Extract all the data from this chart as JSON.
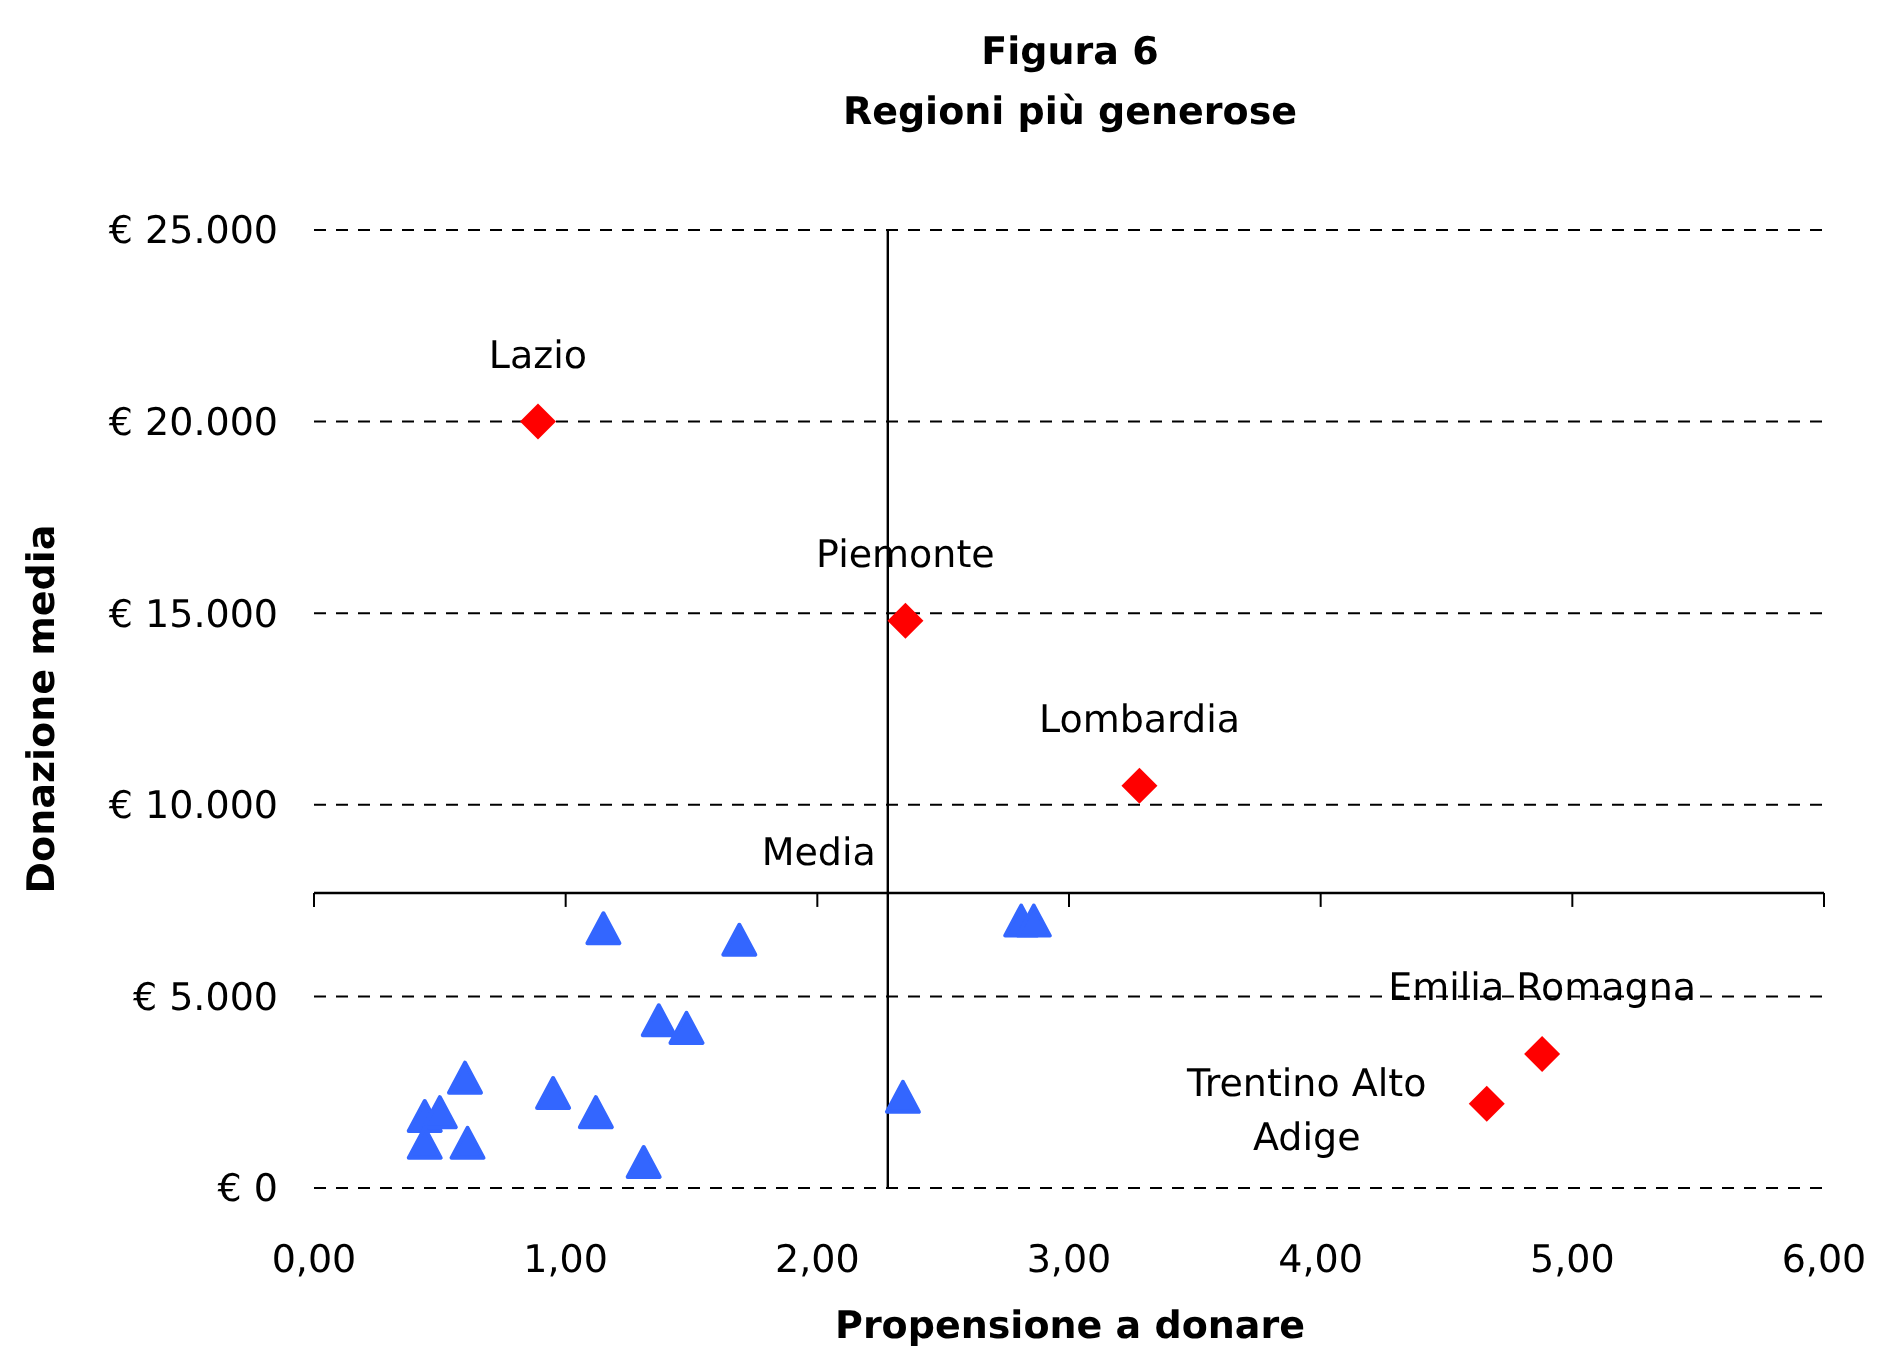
{
  "chart_data": {
    "type": "scatter",
    "title": "Figura 6",
    "subtitle": "Regioni più generose",
    "xlabel": "Propensione a donare",
    "ylabel": "Donazione media",
    "xlim": [
      0,
      6
    ],
    "xticks": [
      {
        "value": 0,
        "label": "0,00"
      },
      {
        "value": 1,
        "label": "1,00"
      },
      {
        "value": 2,
        "label": "2,00"
      },
      {
        "value": 3,
        "label": "3,00"
      },
      {
        "value": 4,
        "label": "4,00"
      },
      {
        "value": 5,
        "label": "5,00"
      },
      {
        "value": 6,
        "label": "6,00"
      }
    ],
    "ylim": [
      0,
      25000
    ],
    "yticks": [
      {
        "value": 0,
        "label": "€ 0"
      },
      {
        "value": 5000,
        "label": "€ 5.000"
      },
      {
        "value": 10000,
        "label": "€ 10.000"
      },
      {
        "value": 15000,
        "label": "€ 15.000"
      },
      {
        "value": 20000,
        "label": "€ 20.000"
      },
      {
        "value": 25000,
        "label": "€ 25.000"
      }
    ],
    "grid": "y",
    "series": [
      {
        "color": "#ff0000",
        "marker": "diamond",
        "x": [
          0.89,
          2.35,
          3.28,
          4.88,
          4.66
        ],
        "values": [
          20000,
          14800,
          10500,
          3500,
          2200
        ]
      },
      {
        "color": "#3366ff",
        "marker": "triangle",
        "x": [
          1.15,
          1.69,
          2.81,
          2.86,
          1.37,
          1.48,
          0.6,
          0.95,
          1.12,
          2.34,
          0.44,
          0.5,
          0.44,
          0.61,
          1.31
        ],
        "values": [
          6700,
          6400,
          6900,
          6900,
          4300,
          4100,
          2800,
          2400,
          1900,
          2300,
          1800,
          1900,
          1100,
          1100,
          600
        ]
      }
    ],
    "ref_lines": [
      {
        "axis": "y",
        "value": 7700,
        "label": "Media",
        "color": "#000000"
      },
      {
        "axis": "x",
        "value": 2.28,
        "color": "#000000"
      }
    ],
    "annotations": [
      {
        "text": "Lazio",
        "x": 0.89,
        "y": 20000
      },
      {
        "text": "Piemonte",
        "x": 2.35,
        "y": 14800
      },
      {
        "text": "Lombardia",
        "x": 3.28,
        "y": 10500
      },
      {
        "text": "Emilia Romagna",
        "x": 4.88,
        "y": 3500
      },
      {
        "text": "Trentino Alto\nAdige",
        "x": 4.66,
        "y": 2200
      }
    ]
  }
}
